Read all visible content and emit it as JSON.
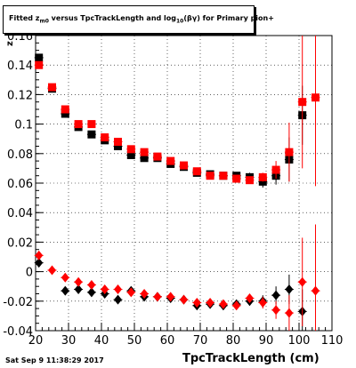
{
  "title": {
    "prefix": "Fitted  z",
    "sub1": "m0",
    "middle": " versus TpcTrackLength and log",
    "sub2": "10",
    "suffix": "(βγ) for Primary pion+"
  },
  "timestamp": "Sat Sep  9 11:38:29 2017",
  "chart_data": {
    "type": "scatter",
    "title": "Fitted z_m0 versus TpcTrackLength and log10(βγ) for Primary pion+",
    "xlabel": "TpcTrackLength (cm)",
    "ylabel": "z",
    "xlim": [
      20,
      110
    ],
    "ylim": [
      -0.04,
      0.16
    ],
    "x_ticks": [
      20,
      30,
      40,
      50,
      60,
      70,
      80,
      90,
      100,
      110
    ],
    "y_ticks": [
      -0.04,
      -0.02,
      0,
      0.02,
      0.04,
      0.06,
      0.08,
      0.1,
      0.12,
      0.14,
      0.16
    ],
    "x_tick_labels": [
      "20",
      "30",
      "40",
      "50",
      "60",
      "70",
      "80",
      "90",
      "100",
      "110"
    ],
    "y_tick_labels": [
      "-0.04",
      "-0.02",
      "0",
      "0.02",
      "0.04",
      "0.06",
      "0.08",
      "0.1",
      "0.12",
      "0.14",
      "0.16"
    ],
    "grid": true,
    "series": [
      {
        "marker": "square",
        "color": "#000000",
        "points": [
          {
            "x": 21,
            "y": 0.145,
            "err": 0.0
          },
          {
            "x": 25,
            "y": 0.124,
            "err": 0.0
          },
          {
            "x": 29,
            "y": 0.107,
            "err": 0.0
          },
          {
            "x": 33,
            "y": 0.098,
            "err": 0.0
          },
          {
            "x": 37,
            "y": 0.093,
            "err": 0.0
          },
          {
            "x": 41,
            "y": 0.089,
            "err": 0.0
          },
          {
            "x": 45,
            "y": 0.085,
            "err": 0.0
          },
          {
            "x": 49,
            "y": 0.079,
            "err": 0.0
          },
          {
            "x": 53,
            "y": 0.077,
            "err": 0.0
          },
          {
            "x": 57,
            "y": 0.077,
            "err": 0.0
          },
          {
            "x": 61,
            "y": 0.073,
            "err": 0.0
          },
          {
            "x": 65,
            "y": 0.071,
            "err": 0.0
          },
          {
            "x": 69,
            "y": 0.067,
            "err": 0.0
          },
          {
            "x": 73,
            "y": 0.066,
            "err": 0.0
          },
          {
            "x": 77,
            "y": 0.065,
            "err": 0.0
          },
          {
            "x": 81,
            "y": 0.065,
            "err": 0.0
          },
          {
            "x": 85,
            "y": 0.064,
            "err": 0.003
          },
          {
            "x": 89,
            "y": 0.061,
            "err": 0.004
          },
          {
            "x": 93,
            "y": 0.065,
            "err": 0.006
          },
          {
            "x": 97,
            "y": 0.076,
            "err": 0.015
          },
          {
            "x": 101,
            "y": 0.106,
            "err": 0.02
          }
        ]
      },
      {
        "marker": "square",
        "color": "#ff0000",
        "points": [
          {
            "x": 21,
            "y": 0.14,
            "err": 0.0
          },
          {
            "x": 25,
            "y": 0.125,
            "err": 0.0
          },
          {
            "x": 29,
            "y": 0.11,
            "err": 0.0
          },
          {
            "x": 33,
            "y": 0.1,
            "err": 0.0
          },
          {
            "x": 37,
            "y": 0.1,
            "err": 0.0
          },
          {
            "x": 41,
            "y": 0.091,
            "err": 0.0
          },
          {
            "x": 45,
            "y": 0.088,
            "err": 0.0
          },
          {
            "x": 49,
            "y": 0.083,
            "err": 0.0
          },
          {
            "x": 53,
            "y": 0.081,
            "err": 0.0
          },
          {
            "x": 57,
            "y": 0.078,
            "err": 0.0
          },
          {
            "x": 61,
            "y": 0.075,
            "err": 0.0
          },
          {
            "x": 65,
            "y": 0.072,
            "err": 0.0
          },
          {
            "x": 69,
            "y": 0.068,
            "err": 0.0
          },
          {
            "x": 73,
            "y": 0.065,
            "err": 0.0
          },
          {
            "x": 77,
            "y": 0.065,
            "err": 0.0
          },
          {
            "x": 81,
            "y": 0.063,
            "err": 0.0
          },
          {
            "x": 85,
            "y": 0.062,
            "err": 0.0
          },
          {
            "x": 89,
            "y": 0.064,
            "err": 0.003
          },
          {
            "x": 93,
            "y": 0.069,
            "err": 0.006
          },
          {
            "x": 97,
            "y": 0.081,
            "err": 0.02
          },
          {
            "x": 101,
            "y": 0.115,
            "err": 0.045
          },
          {
            "x": 105,
            "y": 0.118,
            "err": 0.06
          }
        ]
      },
      {
        "marker": "diamond",
        "color": "#000000",
        "points": [
          {
            "x": 21,
            "y": 0.006,
            "err": 0.0
          },
          {
            "x": 29,
            "y": -0.013,
            "err": 0.0
          },
          {
            "x": 33,
            "y": -0.012,
            "err": 0.0
          },
          {
            "x": 37,
            "y": -0.014,
            "err": 0.0
          },
          {
            "x": 41,
            "y": -0.015,
            "err": 0.0
          },
          {
            "x": 45,
            "y": -0.019,
            "err": 0.0
          },
          {
            "x": 49,
            "y": -0.013,
            "err": 0.0
          },
          {
            "x": 53,
            "y": -0.017,
            "err": 0.0
          },
          {
            "x": 57,
            "y": -0.017,
            "err": 0.0
          },
          {
            "x": 61,
            "y": -0.018,
            "err": 0.0
          },
          {
            "x": 65,
            "y": -0.019,
            "err": 0.0
          },
          {
            "x": 69,
            "y": -0.023,
            "err": 0.0
          },
          {
            "x": 73,
            "y": -0.022,
            "err": 0.0
          },
          {
            "x": 77,
            "y": -0.023,
            "err": 0.0
          },
          {
            "x": 81,
            "y": -0.022,
            "err": 0.0
          },
          {
            "x": 85,
            "y": -0.02,
            "err": 0.003
          },
          {
            "x": 89,
            "y": -0.02,
            "err": 0.004
          },
          {
            "x": 93,
            "y": -0.016,
            "err": 0.006
          },
          {
            "x": 97,
            "y": -0.012,
            "err": 0.01
          },
          {
            "x": 101,
            "y": -0.027,
            "err": 0.015
          }
        ]
      },
      {
        "marker": "diamond",
        "color": "#ff0000",
        "points": [
          {
            "x": 21,
            "y": 0.011,
            "err": 0.0
          },
          {
            "x": 25,
            "y": 0.001,
            "err": 0.0
          },
          {
            "x": 29,
            "y": -0.004,
            "err": 0.0
          },
          {
            "x": 33,
            "y": -0.007,
            "err": 0.0
          },
          {
            "x": 37,
            "y": -0.009,
            "err": 0.0
          },
          {
            "x": 41,
            "y": -0.012,
            "err": 0.0
          },
          {
            "x": 45,
            "y": -0.012,
            "err": 0.0
          },
          {
            "x": 49,
            "y": -0.014,
            "err": 0.0
          },
          {
            "x": 53,
            "y": -0.015,
            "err": 0.0
          },
          {
            "x": 57,
            "y": -0.017,
            "err": 0.0
          },
          {
            "x": 61,
            "y": -0.017,
            "err": 0.0
          },
          {
            "x": 65,
            "y": -0.019,
            "err": 0.0
          },
          {
            "x": 69,
            "y": -0.021,
            "err": 0.0
          },
          {
            "x": 73,
            "y": -0.021,
            "err": 0.0
          },
          {
            "x": 77,
            "y": -0.022,
            "err": 0.0
          },
          {
            "x": 81,
            "y": -0.023,
            "err": 0.0
          },
          {
            "x": 85,
            "y": -0.018,
            "err": 0.003
          },
          {
            "x": 89,
            "y": -0.021,
            "err": 0.004
          },
          {
            "x": 93,
            "y": -0.026,
            "err": 0.006
          },
          {
            "x": 97,
            "y": -0.028,
            "err": 0.012
          },
          {
            "x": 101,
            "y": -0.007,
            "err": 0.03
          },
          {
            "x": 105,
            "y": -0.013,
            "err": 0.045
          }
        ]
      }
    ]
  }
}
